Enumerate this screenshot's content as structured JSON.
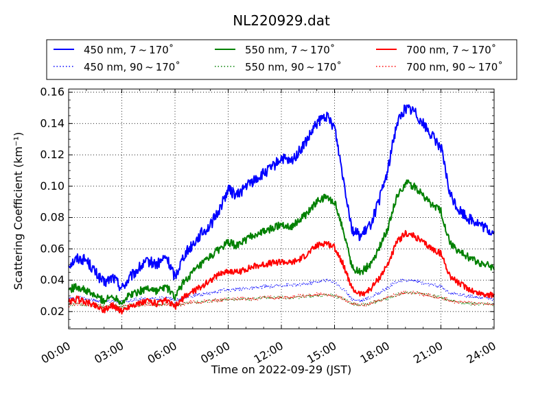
{
  "chart_data": {
    "type": "line",
    "title": "NL220929.dat",
    "xlabel": "Time on 2022-09-29 (JST)",
    "ylabel": "Scattering Coefficient (km⁻¹)",
    "xlim": [
      0,
      24
    ],
    "ylim": [
      0.009,
      0.162
    ],
    "x_ticks": [
      "00:00",
      "03:00",
      "06:00",
      "09:00",
      "12:00",
      "15:00",
      "18:00",
      "21:00",
      "24:00"
    ],
    "y_ticks": [
      "0.02",
      "0.04",
      "0.06",
      "0.08",
      "0.10",
      "0.12",
      "0.14",
      "0.16"
    ],
    "grid": true,
    "legend_position": "top",
    "x": [
      0,
      0.5,
      1,
      1.5,
      2,
      2.5,
      3,
      3.5,
      4,
      4.5,
      5,
      5.5,
      6,
      6.5,
      7,
      7.5,
      8,
      8.5,
      9,
      9.5,
      10,
      10.5,
      11,
      11.5,
      12,
      12.5,
      13,
      13.5,
      14,
      14.5,
      15,
      15.5,
      16,
      16.5,
      17,
      17.5,
      18,
      18.5,
      19,
      19.5,
      20,
      20.5,
      21,
      21.5,
      22,
      22.5,
      23,
      23.5,
      24
    ],
    "series": [
      {
        "name": "450 nm, 7 ~ 170˚",
        "color": "#0000ff",
        "style": "solid",
        "values": [
          0.05,
          0.054,
          0.053,
          0.045,
          0.038,
          0.042,
          0.035,
          0.042,
          0.048,
          0.052,
          0.05,
          0.055,
          0.042,
          0.056,
          0.063,
          0.07,
          0.075,
          0.085,
          0.098,
          0.094,
          0.1,
          0.104,
          0.108,
          0.112,
          0.118,
          0.115,
          0.122,
          0.13,
          0.14,
          0.145,
          0.138,
          0.105,
          0.072,
          0.068,
          0.075,
          0.09,
          0.11,
          0.14,
          0.15,
          0.148,
          0.14,
          0.132,
          0.125,
          0.095,
          0.085,
          0.08,
          0.077,
          0.073,
          0.07
        ]
      },
      {
        "name": "550 nm, 7 ~ 170˚",
        "color": "#008000",
        "style": "solid",
        "values": [
          0.034,
          0.036,
          0.033,
          0.03,
          0.027,
          0.03,
          0.026,
          0.031,
          0.033,
          0.035,
          0.033,
          0.036,
          0.029,
          0.039,
          0.045,
          0.05,
          0.055,
          0.06,
          0.064,
          0.062,
          0.066,
          0.069,
          0.071,
          0.073,
          0.076,
          0.074,
          0.078,
          0.083,
          0.09,
          0.093,
          0.09,
          0.072,
          0.048,
          0.045,
          0.05,
          0.06,
          0.073,
          0.093,
          0.102,
          0.1,
          0.094,
          0.088,
          0.084,
          0.064,
          0.058,
          0.055,
          0.052,
          0.05,
          0.048
        ]
      },
      {
        "name": "700 nm, 7 ~ 170˚",
        "color": "#ff0000",
        "style": "solid",
        "values": [
          0.026,
          0.028,
          0.026,
          0.024,
          0.021,
          0.024,
          0.02,
          0.024,
          0.025,
          0.027,
          0.025,
          0.027,
          0.023,
          0.029,
          0.033,
          0.036,
          0.04,
          0.044,
          0.046,
          0.045,
          0.047,
          0.049,
          0.05,
          0.051,
          0.052,
          0.051,
          0.053,
          0.057,
          0.062,
          0.064,
          0.061,
          0.05,
          0.034,
          0.031,
          0.034,
          0.041,
          0.05,
          0.064,
          0.07,
          0.068,
          0.064,
          0.06,
          0.057,
          0.043,
          0.038,
          0.035,
          0.032,
          0.031,
          0.03
        ]
      },
      {
        "name": "450 nm, 90 ~ 170˚",
        "color": "#0000ff",
        "style": "dotted",
        "values": [
          0.028,
          0.029,
          0.028,
          0.027,
          0.026,
          0.027,
          0.026,
          0.027,
          0.028,
          0.028,
          0.028,
          0.029,
          0.027,
          0.029,
          0.03,
          0.031,
          0.032,
          0.033,
          0.034,
          0.034,
          0.035,
          0.035,
          0.036,
          0.036,
          0.037,
          0.037,
          0.037,
          0.038,
          0.039,
          0.04,
          0.039,
          0.034,
          0.028,
          0.027,
          0.029,
          0.032,
          0.035,
          0.039,
          0.04,
          0.04,
          0.038,
          0.037,
          0.036,
          0.032,
          0.031,
          0.03,
          0.029,
          0.029,
          0.028
        ]
      },
      {
        "name": "550 nm, 90 ~ 170˚",
        "color": "#008000",
        "style": "dotted",
        "values": [
          0.024,
          0.025,
          0.024,
          0.024,
          0.023,
          0.024,
          0.023,
          0.024,
          0.024,
          0.025,
          0.024,
          0.025,
          0.024,
          0.025,
          0.026,
          0.026,
          0.027,
          0.027,
          0.028,
          0.028,
          0.028,
          0.028,
          0.029,
          0.029,
          0.029,
          0.029,
          0.029,
          0.03,
          0.03,
          0.031,
          0.03,
          0.028,
          0.025,
          0.024,
          0.025,
          0.027,
          0.028,
          0.031,
          0.032,
          0.032,
          0.031,
          0.03,
          0.029,
          0.027,
          0.026,
          0.025,
          0.025,
          0.025,
          0.024
        ]
      },
      {
        "name": "700 nm, 90 ~ 170˚",
        "color": "#ff0000",
        "style": "dotted",
        "values": [
          0.024,
          0.025,
          0.025,
          0.024,
          0.023,
          0.024,
          0.023,
          0.024,
          0.024,
          0.025,
          0.024,
          0.025,
          0.024,
          0.025,
          0.026,
          0.026,
          0.027,
          0.027,
          0.028,
          0.028,
          0.028,
          0.028,
          0.029,
          0.029,
          0.029,
          0.029,
          0.03,
          0.03,
          0.031,
          0.031,
          0.03,
          0.028,
          0.025,
          0.024,
          0.025,
          0.027,
          0.029,
          0.031,
          0.032,
          0.032,
          0.031,
          0.03,
          0.029,
          0.027,
          0.026,
          0.026,
          0.025,
          0.025,
          0.025
        ]
      }
    ],
    "legend_order": [
      0,
      1,
      2,
      3,
      4,
      5
    ]
  }
}
